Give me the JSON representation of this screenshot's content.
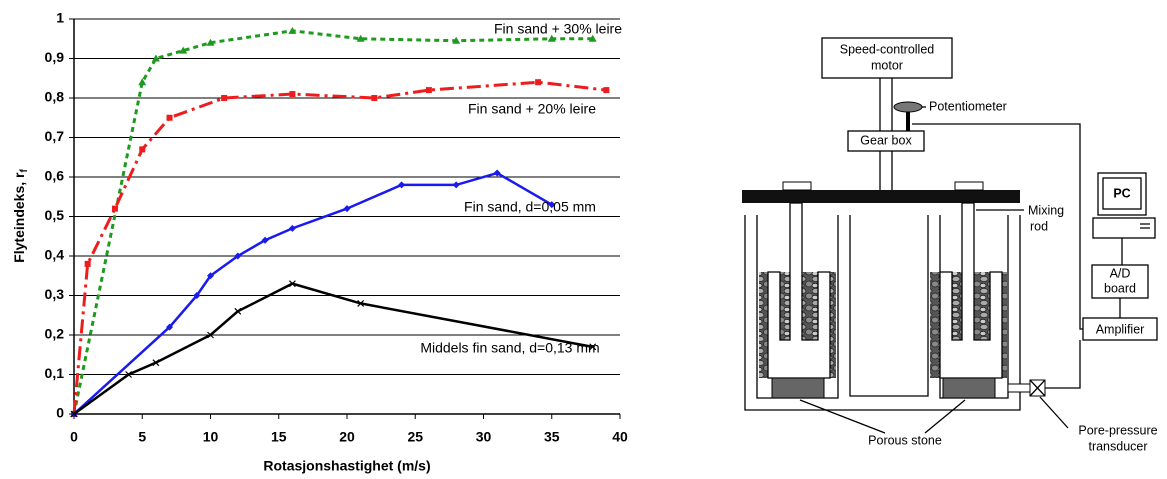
{
  "chart_data": {
    "type": "line",
    "x_label": "Rotasjonshastighet (m/s)",
    "y_label": "Flyteindeks, r",
    "y_label_sub": "f",
    "xlim": [
      0,
      40
    ],
    "xticks": [
      0,
      5,
      10,
      15,
      20,
      25,
      30,
      35,
      40
    ],
    "ylim": [
      0,
      1
    ],
    "yticks": [
      0,
      {
        "value": 0.1,
        "label": "0,1"
      },
      {
        "value": 0.2,
        "label": "0,2"
      },
      {
        "value": 0.3,
        "label": "0,3"
      },
      {
        "value": 0.4,
        "label": "0,4"
      },
      {
        "value": 0.5,
        "label": "0,5"
      },
      {
        "value": 0.6,
        "label": "0,6"
      },
      {
        "value": 0.7,
        "label": "0,7"
      },
      {
        "value": 0.8,
        "label": "0,8"
      },
      {
        "value": 0.9,
        "label": "0,9"
      },
      1
    ],
    "grid": true,
    "series": [
      {
        "name": "Fin sand + 30% leire",
        "color": "#1e9a1e",
        "marker": "triangle",
        "dash": "5,4",
        "x": [
          0,
          5,
          6,
          8,
          10,
          16,
          21,
          28,
          35,
          38
        ],
        "values": [
          0,
          0.84,
          0.9,
          0.92,
          0.94,
          0.97,
          0.95,
          0.945,
          0.95,
          0.95
        ]
      },
      {
        "name": "Fin sand + 20% leire",
        "color": "#ee1c1c",
        "marker": "square",
        "dash": "14,5,3,5",
        "x": [
          0,
          1,
          3,
          5,
          7,
          11,
          16,
          22,
          26,
          34,
          39
        ],
        "values": [
          0,
          0.38,
          0.52,
          0.67,
          0.75,
          0.8,
          0.81,
          0.8,
          0.82,
          0.84,
          0.82
        ]
      },
      {
        "name": "Fin sand, d=0,05 mm",
        "color": "#1a1aee",
        "marker": "diamond",
        "dash": "none",
        "x": [
          0,
          7,
          9,
          10,
          12,
          14,
          16,
          20,
          24,
          28,
          31,
          35
        ],
        "values": [
          0,
          0.22,
          0.3,
          0.35,
          0.4,
          0.44,
          0.47,
          0.52,
          0.58,
          0.58,
          0.61,
          0.53
        ]
      },
      {
        "name": "Middels fin sand, d=0,13 mm",
        "color": "#000000",
        "marker": "cross",
        "dash": "none",
        "x": [
          0,
          4,
          6,
          10,
          12,
          16,
          21,
          38
        ],
        "values": [
          0,
          0.1,
          0.13,
          0.2,
          0.26,
          0.33,
          0.28,
          0.17
        ]
      }
    ]
  },
  "diagram": {
    "motor": [
      "Speed-controlled",
      "motor"
    ],
    "potentiometer": "Potentiometer",
    "gear_box": "Gear box",
    "mixing_rod": [
      "Mixing",
      "rod"
    ],
    "pc": "PC",
    "ad_board": [
      "A/D",
      "board"
    ],
    "amplifier": "Amplifier",
    "porous_stone": "Porous stone",
    "transducer": [
      "Pore-pressure",
      "transducer"
    ]
  }
}
